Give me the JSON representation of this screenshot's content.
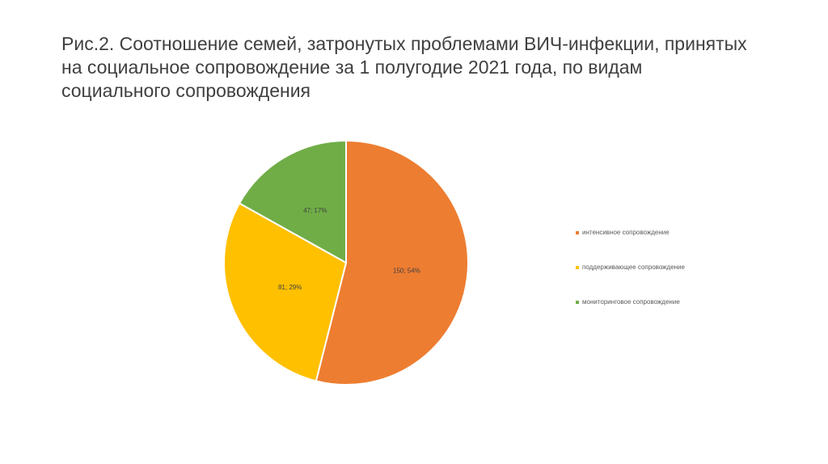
{
  "title_lines": [
    "Рис.2. Соотношение семей, затронутых проблемами ВИЧ-инфекции, принятых",
    "на социальное сопровождение за 1 полугодие 2021 года, по видам",
    "социального сопровождения"
  ],
  "chart_data": {
    "type": "pie",
    "title": "Рис.2. Соотношение семей, затронутых проблемами ВИЧ-инфекции, принятых на социальное сопровождение за 1 полугодие 2021 года, по видам социального сопровождения",
    "categories": [
      "интенсивное сопровождение",
      "поддерживающее сопровождение",
      "мониторинговое сопровождение"
    ],
    "values": [
      150,
      81,
      47
    ],
    "percentages": [
      54,
      29,
      17
    ],
    "labels": [
      "150; 54%",
      "81; 29%",
      "47; 17%"
    ],
    "colors": [
      "#ED7D31",
      "#FFC000",
      "#70AD47"
    ],
    "start_angle": "12 o'clock",
    "direction": "clockwise",
    "legend_position": "right"
  }
}
